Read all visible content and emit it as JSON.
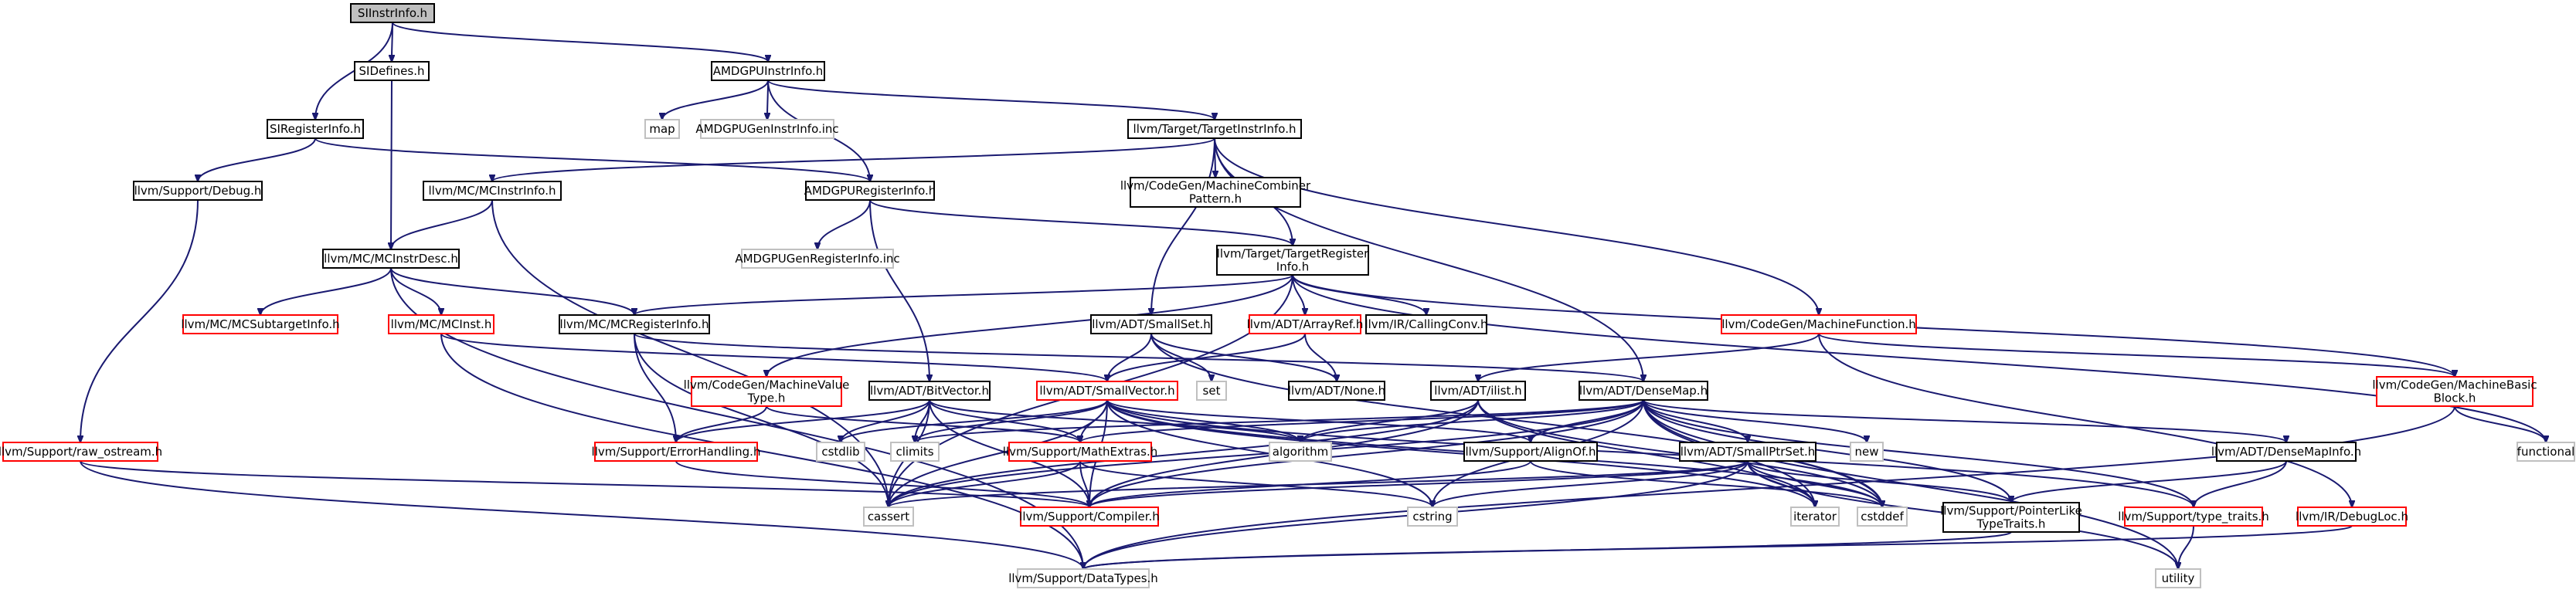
{
  "nodes": [
    {
      "id": "SIInstrInfo.h",
      "label": [
        "SIInstrInfo.h"
      ],
      "style": "root"
    },
    {
      "id": "SIDefines.h",
      "label": [
        "SIDefines.h"
      ],
      "style": "std"
    },
    {
      "id": "SIRegisterInfo.h",
      "label": [
        "SIRegisterInfo.h"
      ],
      "style": "std"
    },
    {
      "id": "AMDGPUInstrInfo.h",
      "label": [
        "AMDGPUInstrInfo.h"
      ],
      "style": "std"
    },
    {
      "id": "map",
      "label": [
        "map"
      ],
      "style": "gray"
    },
    {
      "id": "AMDGPUGenInstrInfo.inc",
      "label": [
        "AMDGPUGenInstrInfo.inc"
      ],
      "style": "gray"
    },
    {
      "id": "TargetInstrInfo.h",
      "label": [
        "llvm/Target/TargetInstrInfo.h"
      ],
      "style": "std"
    },
    {
      "id": "Debug.h",
      "label": [
        "llvm/Support/Debug.h"
      ],
      "style": "std"
    },
    {
      "id": "MCInstrInfo.h",
      "label": [
        "llvm/MC/MCInstrInfo.h"
      ],
      "style": "std"
    },
    {
      "id": "AMDGPURegisterInfo.h",
      "label": [
        "AMDGPURegisterInfo.h"
      ],
      "style": "std"
    },
    {
      "id": "MachineCombinerPattern.h",
      "label": [
        "llvm/CodeGen/MachineCombiner",
        "Pattern.h"
      ],
      "style": "std"
    },
    {
      "id": "MCInstrDesc.h",
      "label": [
        "llvm/MC/MCInstrDesc.h"
      ],
      "style": "std"
    },
    {
      "id": "AMDGPUGenRegisterInfo.inc",
      "label": [
        "AMDGPUGenRegisterInfo.inc"
      ],
      "style": "gray"
    },
    {
      "id": "TargetRegisterInfo.h",
      "label": [
        "llvm/Target/TargetRegister",
        "Info.h"
      ],
      "style": "std"
    },
    {
      "id": "MCSubtargetInfo.h",
      "label": [
        "llvm/MC/MCSubtargetInfo.h"
      ],
      "style": "red"
    },
    {
      "id": "MCInst.h",
      "label": [
        "llvm/MC/MCInst.h"
      ],
      "style": "red"
    },
    {
      "id": "MCRegisterInfo.h",
      "label": [
        "llvm/MC/MCRegisterInfo.h"
      ],
      "style": "std"
    },
    {
      "id": "SmallSet.h",
      "label": [
        "llvm/ADT/SmallSet.h"
      ],
      "style": "std"
    },
    {
      "id": "ArrayRef.h",
      "label": [
        "llvm/ADT/ArrayRef.h"
      ],
      "style": "red"
    },
    {
      "id": "CallingConv.h",
      "label": [
        "llvm/IR/CallingConv.h"
      ],
      "style": "std"
    },
    {
      "id": "MachineFunction.h",
      "label": [
        "llvm/CodeGen/MachineFunction.h"
      ],
      "style": "red"
    },
    {
      "id": "MachineValueType.h",
      "label": [
        "llvm/CodeGen/MachineValue",
        "Type.h"
      ],
      "style": "red"
    },
    {
      "id": "BitVector.h",
      "label": [
        "llvm/ADT/BitVector.h"
      ],
      "style": "std"
    },
    {
      "id": "SmallVector.h",
      "label": [
        "llvm/ADT/SmallVector.h"
      ],
      "style": "red"
    },
    {
      "id": "set",
      "label": [
        "set"
      ],
      "style": "gray"
    },
    {
      "id": "None.h",
      "label": [
        "llvm/ADT/None.h"
      ],
      "style": "std"
    },
    {
      "id": "ilist.h",
      "label": [
        "llvm/ADT/ilist.h"
      ],
      "style": "std"
    },
    {
      "id": "DenseMap.h",
      "label": [
        "llvm/ADT/DenseMap.h"
      ],
      "style": "std"
    },
    {
      "id": "MachineBasicBlock.h",
      "label": [
        "llvm/CodeGen/MachineBasic",
        "Block.h"
      ],
      "style": "red"
    },
    {
      "id": "raw_ostream.h",
      "label": [
        "llvm/Support/raw_ostream.h"
      ],
      "style": "red"
    },
    {
      "id": "ErrorHandling.h",
      "label": [
        "llvm/Support/ErrorHandling.h"
      ],
      "style": "red"
    },
    {
      "id": "cstdlib",
      "label": [
        "cstdlib"
      ],
      "style": "gray"
    },
    {
      "id": "climits",
      "label": [
        "climits"
      ],
      "style": "gray"
    },
    {
      "id": "algorithm",
      "label": [
        "algorithm"
      ],
      "style": "gray"
    },
    {
      "id": "MathExtras.h",
      "label": [
        "llvm/Support/MathExtras.h"
      ],
      "style": "red"
    },
    {
      "id": "AlignOf.h",
      "label": [
        "llvm/Support/AlignOf.h"
      ],
      "style": "std"
    },
    {
      "id": "SmallPtrSet.h",
      "label": [
        "llvm/ADT/SmallPtrSet.h"
      ],
      "style": "std"
    },
    {
      "id": "new",
      "label": [
        "new"
      ],
      "style": "gray"
    },
    {
      "id": "DenseMapInfo.h",
      "label": [
        "llvm/ADT/DenseMapInfo.h"
      ],
      "style": "std"
    },
    {
      "id": "functional",
      "label": [
        "functional"
      ],
      "style": "gray"
    },
    {
      "id": "cassert",
      "label": [
        "cassert"
      ],
      "style": "gray"
    },
    {
      "id": "Compiler.h",
      "label": [
        "llvm/Support/Compiler.h"
      ],
      "style": "red"
    },
    {
      "id": "cstring",
      "label": [
        "cstring"
      ],
      "style": "gray"
    },
    {
      "id": "iterator",
      "label": [
        "iterator"
      ],
      "style": "gray"
    },
    {
      "id": "cstddef",
      "label": [
        "cstddef"
      ],
      "style": "gray"
    },
    {
      "id": "PointerLikeTypeTraits.h",
      "label": [
        "llvm/Support/PointerLike",
        "TypeTraits.h"
      ],
      "style": "std"
    },
    {
      "id": "type_traits.h",
      "label": [
        "llvm/Support/type_traits.h"
      ],
      "style": "red"
    },
    {
      "id": "DebugLoc.h",
      "label": [
        "llvm/IR/DebugLoc.h"
      ],
      "style": "red"
    },
    {
      "id": "DataTypes.h",
      "label": [
        "llvm/Support/DataTypes.h"
      ],
      "style": "gray"
    },
    {
      "id": "utility",
      "label": [
        "utility"
      ],
      "style": "gray"
    }
  ],
  "edges": [
    [
      "SIInstrInfo.h",
      "SIDefines.h"
    ],
    [
      "SIInstrInfo.h",
      "SIRegisterInfo.h"
    ],
    [
      "SIInstrInfo.h",
      "AMDGPUInstrInfo.h"
    ],
    [
      "SIDefines.h",
      "MCInstrDesc.h"
    ],
    [
      "SIRegisterInfo.h",
      "Debug.h"
    ],
    [
      "SIRegisterInfo.h",
      "AMDGPURegisterInfo.h"
    ],
    [
      "AMDGPUInstrInfo.h",
      "map"
    ],
    [
      "AMDGPUInstrInfo.h",
      "AMDGPUGenInstrInfo.inc"
    ],
    [
      "AMDGPUInstrInfo.h",
      "TargetInstrInfo.h"
    ],
    [
      "AMDGPUInstrInfo.h",
      "AMDGPURegisterInfo.h"
    ],
    [
      "TargetInstrInfo.h",
      "MCInstrInfo.h"
    ],
    [
      "TargetInstrInfo.h",
      "MachineCombinerPattern.h"
    ],
    [
      "TargetInstrInfo.h",
      "TargetRegisterInfo.h"
    ],
    [
      "TargetInstrInfo.h",
      "SmallSet.h"
    ],
    [
      "TargetInstrInfo.h",
      "MachineFunction.h"
    ],
    [
      "TargetInstrInfo.h",
      "DenseMap.h"
    ],
    [
      "Debug.h",
      "raw_ostream.h"
    ],
    [
      "MCInstrInfo.h",
      "MCInstrDesc.h"
    ],
    [
      "MCInstrInfo.h",
      "cassert"
    ],
    [
      "AMDGPURegisterInfo.h",
      "AMDGPUGenRegisterInfo.inc"
    ],
    [
      "AMDGPURegisterInfo.h",
      "TargetRegisterInfo.h"
    ],
    [
      "AMDGPURegisterInfo.h",
      "BitVector.h"
    ],
    [
      "MCInstrDesc.h",
      "MCSubtargetInfo.h"
    ],
    [
      "MCInstrDesc.h",
      "MCInst.h"
    ],
    [
      "MCInstrDesc.h",
      "MCRegisterInfo.h"
    ],
    [
      "MCInstrDesc.h",
      "DataTypes.h"
    ],
    [
      "TargetRegisterInfo.h",
      "MCRegisterInfo.h"
    ],
    [
      "TargetRegisterInfo.h",
      "ArrayRef.h"
    ],
    [
      "TargetRegisterInfo.h",
      "CallingConv.h"
    ],
    [
      "TargetRegisterInfo.h",
      "MachineValueType.h"
    ],
    [
      "TargetRegisterInfo.h",
      "MachineBasicBlock.h"
    ],
    [
      "TargetRegisterInfo.h",
      "functional"
    ],
    [
      "TargetRegisterInfo.h",
      "cassert"
    ],
    [
      "MCInst.h",
      "SmallVector.h"
    ],
    [
      "MCInst.h",
      "DataTypes.h"
    ],
    [
      "MCRegisterInfo.h",
      "DenseMap.h"
    ],
    [
      "MCRegisterInfo.h",
      "ErrorHandling.h"
    ],
    [
      "MCRegisterInfo.h",
      "cassert"
    ],
    [
      "SmallSet.h",
      "None.h"
    ],
    [
      "SmallSet.h",
      "SmallVector.h"
    ],
    [
      "SmallSet.h",
      "set"
    ],
    [
      "SmallSet.h",
      "cstddef"
    ],
    [
      "ArrayRef.h",
      "None.h"
    ],
    [
      "ArrayRef.h",
      "SmallVector.h"
    ],
    [
      "MachineFunction.h",
      "ilist.h"
    ],
    [
      "MachineFunction.h",
      "MachineBasicBlock.h"
    ],
    [
      "MachineFunction.h",
      "DebugLoc.h"
    ],
    [
      "MachineValueType.h",
      "ErrorHandling.h"
    ],
    [
      "MachineValueType.h",
      "MathExtras.h"
    ],
    [
      "BitVector.h",
      "ErrorHandling.h"
    ],
    [
      "BitVector.h",
      "MathExtras.h"
    ],
    [
      "BitVector.h",
      "algorithm"
    ],
    [
      "BitVector.h",
      "cassert"
    ],
    [
      "BitVector.h",
      "climits"
    ],
    [
      "BitVector.h",
      "cstdlib"
    ],
    [
      "BitVector.h",
      "Compiler.h"
    ],
    [
      "SmallVector.h",
      "AlignOf.h"
    ],
    [
      "SmallVector.h",
      "Compiler.h"
    ],
    [
      "SmallVector.h",
      "MathExtras.h"
    ],
    [
      "SmallVector.h",
      "type_traits.h"
    ],
    [
      "SmallVector.h",
      "algorithm"
    ],
    [
      "SmallVector.h",
      "cassert"
    ],
    [
      "SmallVector.h",
      "cstddef"
    ],
    [
      "SmallVector.h",
      "cstdlib"
    ],
    [
      "SmallVector.h",
      "cstring"
    ],
    [
      "SmallVector.h",
      "iterator"
    ],
    [
      "SmallVector.h",
      "climits"
    ],
    [
      "ilist.h",
      "Compiler.h"
    ],
    [
      "ilist.h",
      "algorithm"
    ],
    [
      "ilist.h",
      "cassert"
    ],
    [
      "ilist.h",
      "cstddef"
    ],
    [
      "ilist.h",
      "iterator"
    ],
    [
      "DenseMap.h",
      "DenseMapInfo.h"
    ],
    [
      "DenseMap.h",
      "AlignOf.h"
    ],
    [
      "DenseMap.h",
      "Compiler.h"
    ],
    [
      "DenseMap.h",
      "MathExtras.h"
    ],
    [
      "DenseMap.h",
      "PointerLikeTypeTraits.h"
    ],
    [
      "DenseMap.h",
      "type_traits.h"
    ],
    [
      "DenseMap.h",
      "algorithm"
    ],
    [
      "DenseMap.h",
      "cassert"
    ],
    [
      "DenseMap.h",
      "climits"
    ],
    [
      "DenseMap.h",
      "cstddef"
    ],
    [
      "DenseMap.h",
      "cstring"
    ],
    [
      "DenseMap.h",
      "iterator"
    ],
    [
      "DenseMap.h",
      "new"
    ],
    [
      "DenseMap.h",
      "utility"
    ],
    [
      "DenseMap.h",
      "SmallPtrSet.h"
    ],
    [
      "MachineBasicBlock.h",
      "functional"
    ],
    [
      "MachineBasicBlock.h",
      "DataTypes.h"
    ],
    [
      "raw_ostream.h",
      "Compiler.h"
    ],
    [
      "raw_ostream.h",
      "DataTypes.h"
    ],
    [
      "ErrorHandling.h",
      "Compiler.h"
    ],
    [
      "MathExtras.h",
      "Compiler.h"
    ],
    [
      "MathExtras.h",
      "cassert"
    ],
    [
      "MathExtras.h",
      "cstring"
    ],
    [
      "AlignOf.h",
      "Compiler.h"
    ],
    [
      "AlignOf.h",
      "cstddef"
    ],
    [
      "SmallPtrSet.h",
      "Compiler.h"
    ],
    [
      "SmallPtrSet.h",
      "DataTypes.h"
    ],
    [
      "SmallPtrSet.h",
      "PointerLikeTypeTraits.h"
    ],
    [
      "SmallPtrSet.h",
      "cassert"
    ],
    [
      "SmallPtrSet.h",
      "cstddef"
    ],
    [
      "SmallPtrSet.h",
      "cstring"
    ],
    [
      "SmallPtrSet.h",
      "iterator"
    ],
    [
      "SmallPtrSet.h",
      "utility"
    ],
    [
      "DenseMapInfo.h",
      "PointerLikeTypeTraits.h"
    ],
    [
      "DenseMapInfo.h",
      "type_traits.h"
    ],
    [
      "PointerLikeTypeTraits.h",
      "DataTypes.h"
    ],
    [
      "type_traits.h",
      "utility"
    ],
    [
      "DebugLoc.h",
      "DataTypes.h"
    ]
  ]
}
